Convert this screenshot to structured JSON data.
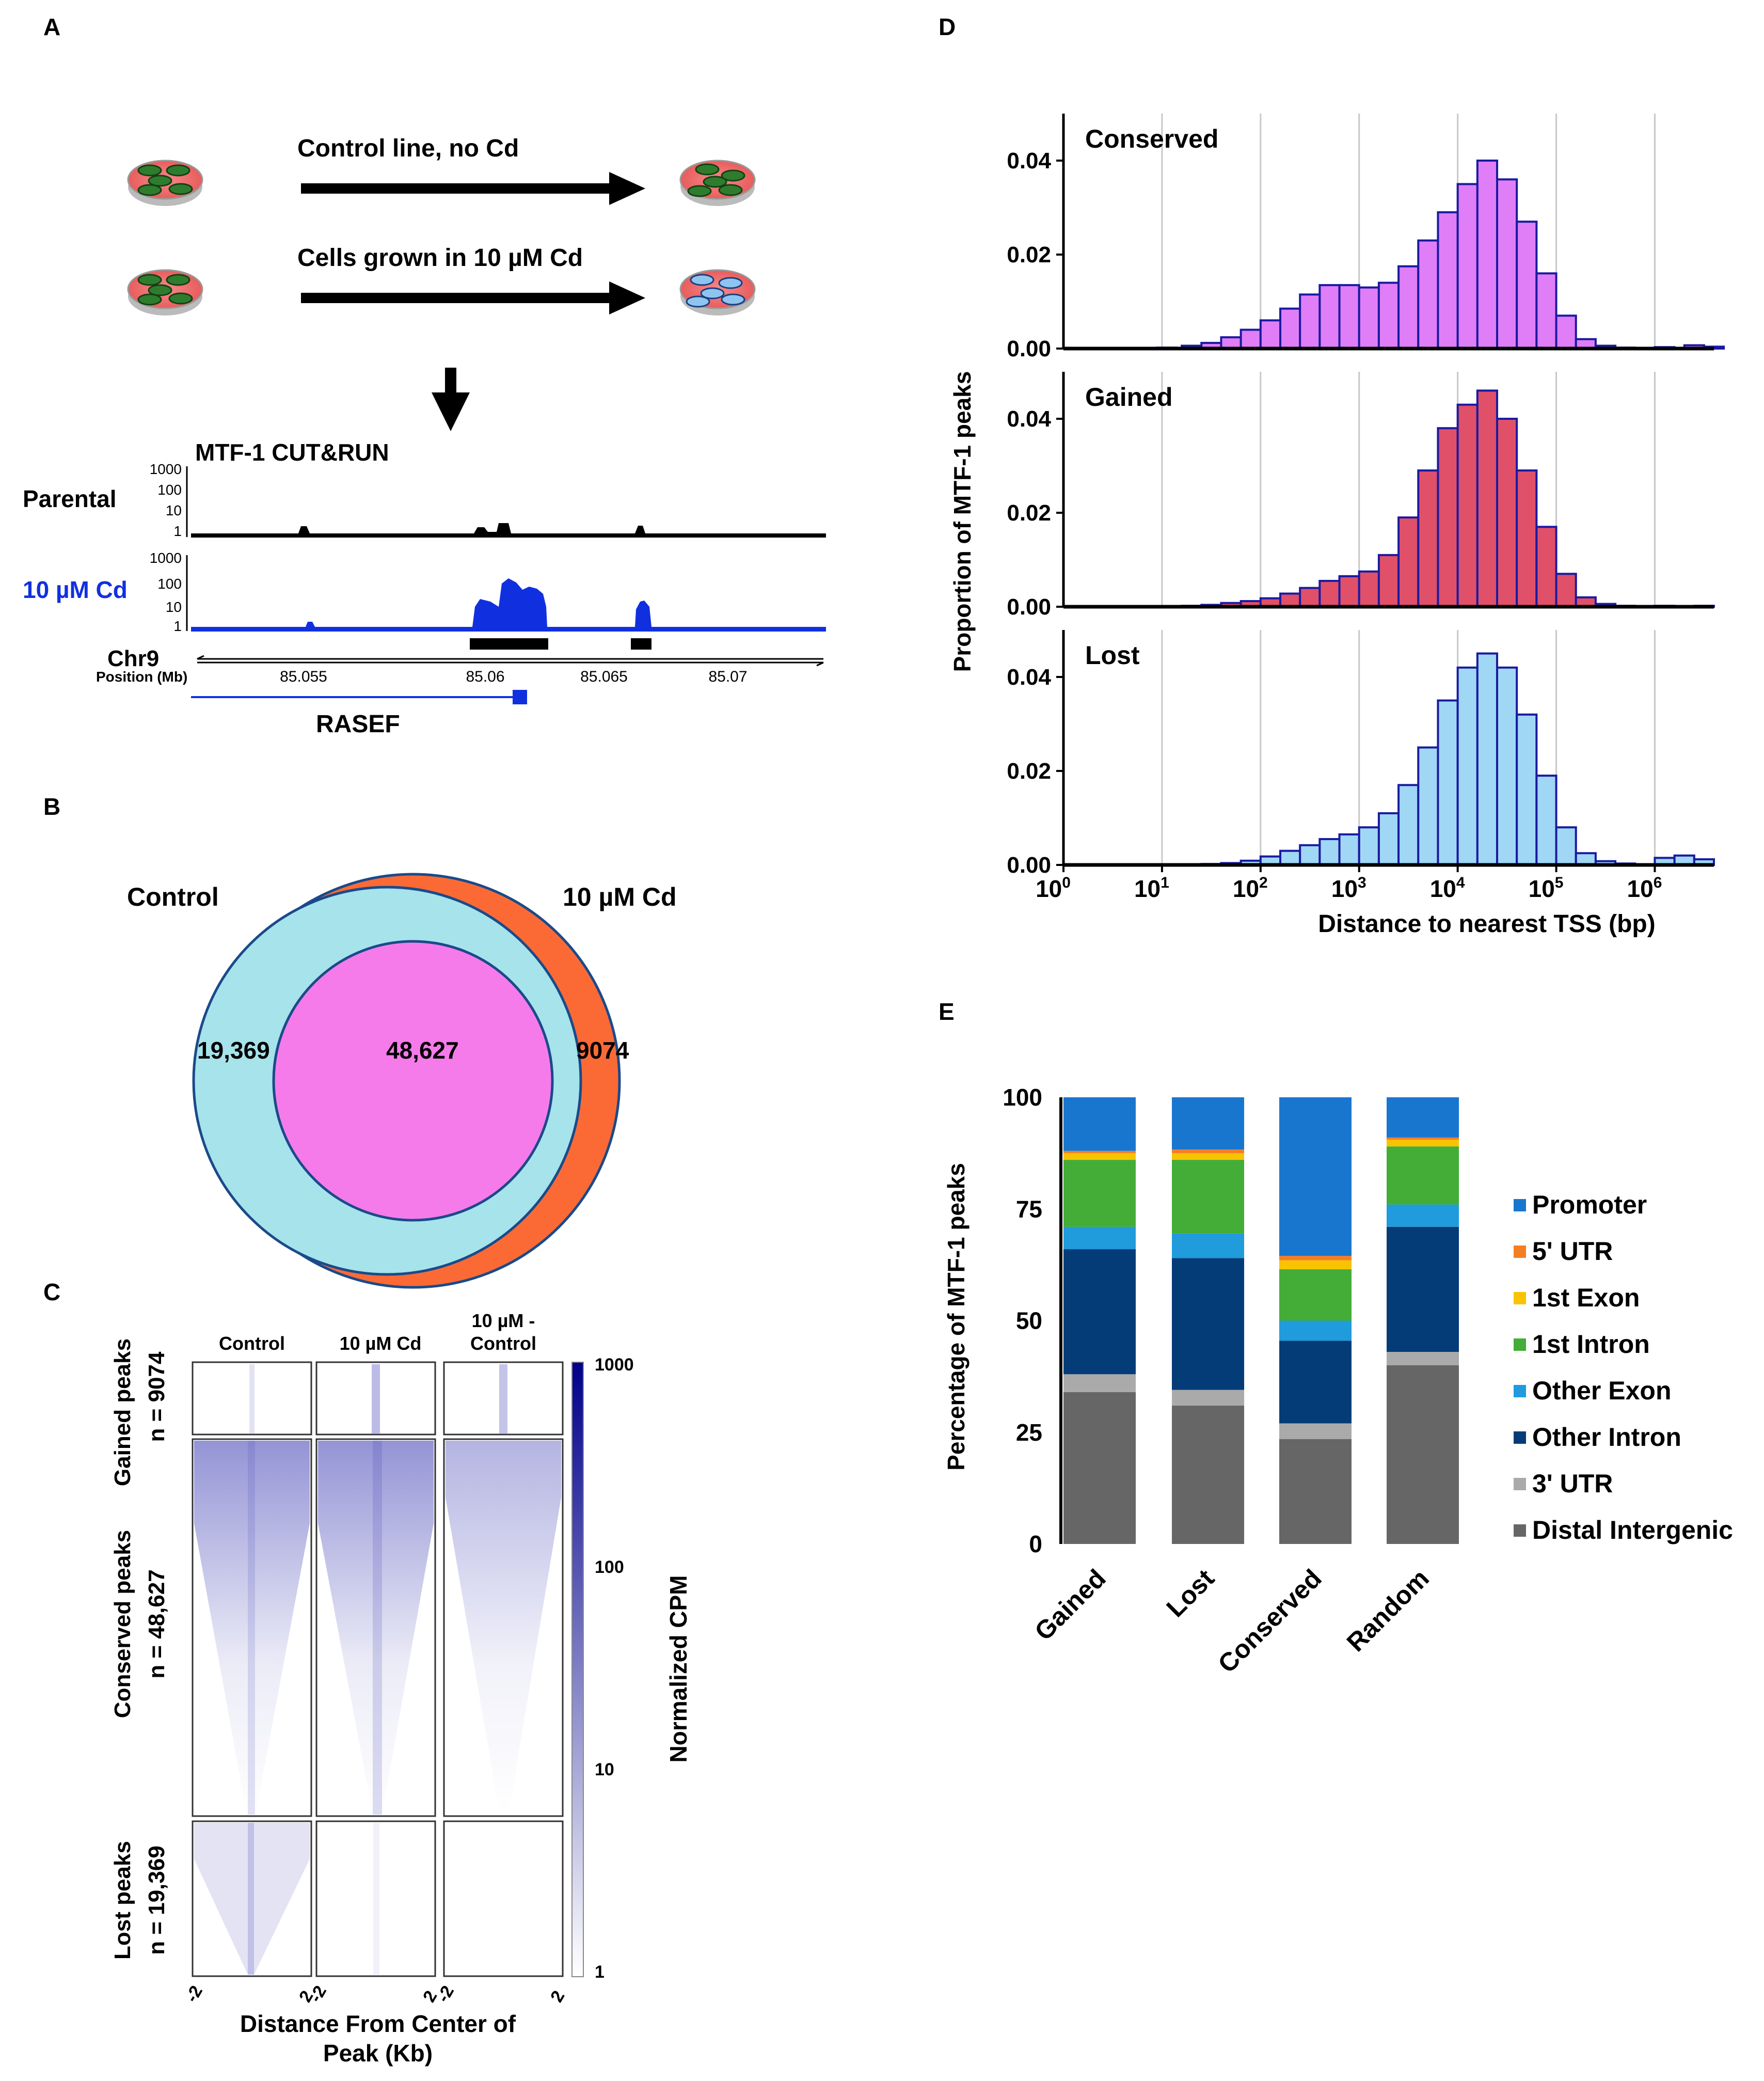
{
  "panels": {
    "a": "A",
    "b": "B",
    "c": "C",
    "d": "D",
    "e": "E"
  },
  "panel_a": {
    "row1_label": "Control line, no Cd",
    "row2_label": "Cells grown in 10 µM Cd",
    "track_title": "MTF-1 CUT&RUN",
    "track1_name": "Parental",
    "track2_name": "10 µM Cd",
    "y_ticks": [
      "1000",
      "100",
      "10",
      "1"
    ],
    "chrom": "Chr9",
    "position_label": "Position (Mb)",
    "positions": [
      "85.055",
      "85.06",
      "85.065",
      "85.07"
    ],
    "gene": "RASEF",
    "colors": {
      "dish": "#f07070",
      "cell_control": "#2e7d2e",
      "cell_cd": "#8ec5f0",
      "parental_track": "#000000",
      "cd_track": "#1030e0"
    }
  },
  "panel_b": {
    "left_label": "Control",
    "right_label": "10 µM Cd",
    "left_only": "19,369",
    "overlap": "48,627",
    "right_only": "9074",
    "colors": {
      "control": "#a6e3ea",
      "overlap": "#f67bea",
      "cd": "#fb6a35",
      "outline": "#1a4a8a"
    }
  },
  "panel_c": {
    "columns": [
      "Control",
      "10 µM Cd",
      "10 µM -\nControl"
    ],
    "rows": [
      {
        "name": "Gained peaks",
        "n": "n = 9074"
      },
      {
        "name": "Conserved peaks",
        "n": "n = 48,627"
      },
      {
        "name": "Lost peaks",
        "n": "n = 19,369"
      }
    ],
    "x_ticks": [
      "-2",
      "2"
    ],
    "xlabel_line1": "Distance From Center of",
    "xlabel_line2": "Peak (Kb)",
    "colorbar_title": "Normalized CPM",
    "colorbar_ticks": [
      "1000",
      "100",
      "10",
      "1"
    ],
    "colorbar_color": "#00008b"
  },
  "chart_data": [
    {
      "id": "D",
      "type": "bar",
      "subtype": "histogram",
      "title": "",
      "xlabel": "Distance to nearest TSS (bp)",
      "ylabel": "Proportion of MTF-1 peaks",
      "x_scale": "log10",
      "xlim": [
        0,
        6.6
      ],
      "ylim": [
        0,
        0.05
      ],
      "x_tick_labels": [
        "10",
        "10",
        "10",
        "10",
        "10",
        "10",
        "10"
      ],
      "x_tick_exponents": [
        "0",
        "1",
        "2",
        "3",
        "4",
        "5",
        "6"
      ],
      "y_tick_labels": [
        "0.00",
        "0.02",
        "0.04"
      ],
      "series": [
        {
          "name": "Conserved",
          "color": "#e07ef7",
          "edge": "#1a1aa0",
          "x_log10": [
            1.05,
            1.3,
            1.5,
            1.7,
            1.9,
            2.1,
            2.3,
            2.5,
            2.7,
            2.9,
            3.1,
            3.3,
            3.5,
            3.7,
            3.9,
            4.1,
            4.3,
            4.5,
            4.7,
            4.9,
            5.1,
            5.3,
            5.5,
            5.7,
            6.1,
            6.4,
            6.6
          ],
          "values": [
            0.0002,
            0.0006,
            0.0012,
            0.0024,
            0.004,
            0.006,
            0.0085,
            0.0115,
            0.0135,
            0.0135,
            0.013,
            0.014,
            0.0175,
            0.023,
            0.029,
            0.035,
            0.04,
            0.036,
            0.027,
            0.016,
            0.007,
            0.002,
            0.0006,
            0.0002,
            0.0003,
            0.0007,
            0.0004
          ]
        },
        {
          "name": "Gained",
          "color": "#e05068",
          "edge": "#1a1aa0",
          "x_log10": [
            1.3,
            1.5,
            1.7,
            1.9,
            2.1,
            2.3,
            2.5,
            2.7,
            2.9,
            3.1,
            3.3,
            3.5,
            3.7,
            3.9,
            4.1,
            4.3,
            4.5,
            4.7,
            4.9,
            5.1,
            5.3,
            5.5,
            5.7,
            6.1,
            6.5
          ],
          "values": [
            0.0002,
            0.0004,
            0.0008,
            0.0012,
            0.0018,
            0.0028,
            0.004,
            0.0055,
            0.0065,
            0.0075,
            0.011,
            0.019,
            0.029,
            0.038,
            0.043,
            0.046,
            0.04,
            0.029,
            0.017,
            0.007,
            0.002,
            0.0006,
            0.0002,
            0.0002,
            0.0002
          ]
        },
        {
          "name": "Lost",
          "color": "#9fd7f5",
          "edge": "#1a1aa0",
          "x_log10": [
            1.5,
            1.7,
            1.9,
            2.1,
            2.3,
            2.5,
            2.7,
            2.9,
            3.1,
            3.3,
            3.5,
            3.7,
            3.9,
            4.1,
            4.3,
            4.5,
            4.7,
            4.9,
            5.1,
            5.3,
            5.5,
            5.7,
            6.1,
            6.3,
            6.5
          ],
          "values": [
            0.0002,
            0.0004,
            0.0009,
            0.0018,
            0.003,
            0.0042,
            0.0055,
            0.0065,
            0.008,
            0.011,
            0.017,
            0.025,
            0.035,
            0.042,
            0.045,
            0.042,
            0.032,
            0.019,
            0.008,
            0.0025,
            0.0008,
            0.0003,
            0.0015,
            0.002,
            0.0012
          ]
        }
      ]
    },
    {
      "id": "E",
      "type": "bar",
      "subtype": "stacked",
      "title": "",
      "xlabel": "",
      "ylabel": "Percentage of MTF-1 peaks",
      "ylim": [
        0,
        100
      ],
      "y_tick_labels": [
        "0",
        "25",
        "50",
        "75",
        "100"
      ],
      "categories": [
        "Gained",
        "Lost",
        "Conserved",
        "Random"
      ],
      "series": [
        {
          "name": "Distal Intergenic",
          "color": "#666666",
          "values": [
            34,
            31,
            23.5,
            40
          ]
        },
        {
          "name": "3' UTR",
          "color": "#aaaaaa",
          "values": [
            4,
            3.5,
            3.5,
            3
          ]
        },
        {
          "name": "Other Intron",
          "color": "#043c78",
          "values": [
            28,
            29.5,
            18.5,
            28
          ]
        },
        {
          "name": "Other Exon",
          "color": "#209bdc",
          "values": [
            5,
            5.5,
            4.5,
            5
          ]
        },
        {
          "name": "1st Intron",
          "color": "#43ad37",
          "values": [
            15,
            16.5,
            11.5,
            13
          ]
        },
        {
          "name": "1st Exon",
          "color": "#f8c400",
          "values": [
            1.5,
            1.5,
            2,
            1.5
          ]
        },
        {
          "name": "5' UTR",
          "color": "#f57e23",
          "values": [
            0.5,
            0.8,
            1,
            0.5
          ]
        },
        {
          "name": "Promoter",
          "color": "#1976cf",
          "values": [
            12,
            11.7,
            35.5,
            9
          ]
        }
      ]
    }
  ]
}
